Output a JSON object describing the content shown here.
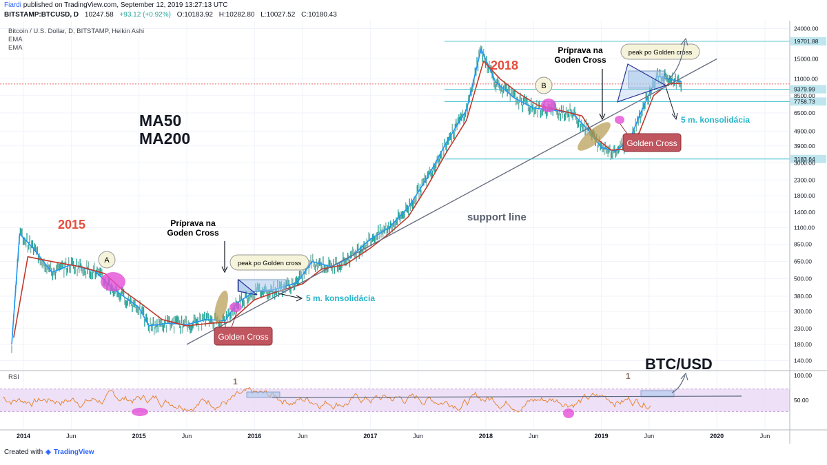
{
  "header": {
    "author": "Fiardi",
    "published": "published on TradingView.com, September 12, 2019 13:27:13 UTC",
    "symbol": "BITSTAMP:BTCUSD, D",
    "last": "10247.58",
    "change": "+93.12 (+0.92%)",
    "open": "O:10183.92",
    "high": "H:10282.80",
    "low": "L:10027.52",
    "close": "C:10180.43"
  },
  "legend": {
    "title": "Bitcoin / U.S. Dollar, D, BITSTAMP, Heikin Ashi",
    "ema1": "EMA",
    "ema2": "EMA",
    "rsi": "RSI"
  },
  "footer": {
    "created": "Created with",
    "brand": "TradingView"
  },
  "colors": {
    "ema_fast": "#2196f3",
    "ema_slow": "#c0392b",
    "candles": "#26a69a",
    "rsi_line": "#e67e22",
    "rsi_band": "#e9d8f5",
    "callout_red": "#c0565f",
    "callout_pink": "#e44fd7",
    "annotation_cyan": "#29b6c9",
    "annotation_red": "#e74c3c",
    "price_line": "#e53935"
  },
  "annotations": {
    "year2015": "2015",
    "year2018": "2018",
    "ma_text_1": "MA50",
    "ma_text_2": "MA200",
    "priprava1_line1": "Príprava na",
    "priprava1_line2": "Goden Cross",
    "priprava2_line1": "Príprava na",
    "priprava2_line2": "Goden Cross",
    "golden_cross_1": "Golden Cross",
    "golden_cross_2": "Golden Cross",
    "peak_1": "peak po Golden cross",
    "peak_2": "peak po Golden cross",
    "konsolidacia_1": "5 m. konsolidácia",
    "konsolidacia_2": "5 m. konsolidácia",
    "support": "support line",
    "btcusd": "BTC/USD",
    "marker_a": "A",
    "marker_b": "B",
    "rsi_marker_1": "1",
    "rsi_marker_2": "1"
  },
  "chart_data": {
    "type": "line",
    "title": "Bitcoin / U.S. Dollar, D, BITSTAMP, Heikin Ashi",
    "yscale": "log",
    "ylim": [
      120,
      26000
    ],
    "x_tick_labels": [
      "2014",
      "Jun",
      "2015",
      "Jun",
      "2016",
      "Jun",
      "2017",
      "Jun",
      "2018",
      "Jun",
      "2019",
      "Jun",
      "2020",
      "Jun"
    ],
    "y_tick_labels": [
      "24000.00",
      "15000.00",
      "11000.00",
      "8500.00",
      "6500.00",
      "4900.00",
      "3900.00",
      "3000.00",
      "2300.00",
      "1800.00",
      "1400.00",
      "1100.00",
      "850.00",
      "650.00",
      "500.00",
      "380.00",
      "300.00",
      "230.00",
      "180.00",
      "140.00"
    ],
    "y_ticks": [
      24000,
      15000,
      11000,
      8500,
      6500,
      4900,
      3900,
      3000,
      2300,
      1800,
      1400,
      1100,
      850,
      650,
      500,
      380,
      300,
      230,
      180,
      140
    ],
    "price_labels": [
      "19701.88",
      "9379.99",
      "7758.73",
      "3183.64"
    ],
    "price_levels": [
      19701.88,
      9379.99,
      7758.73,
      3183.64
    ],
    "current_price": 10180.43,
    "series": [
      {
        "name": "EMA",
        "x": [
          "2013-11-25",
          "2013-12-20",
          "2014-02-01",
          "2014-04-01",
          "2014-06-01",
          "2014-08-15",
          "2014-10-15",
          "2015-01-01",
          "2015-02-01",
          "2015-04-01",
          "2015-06-01",
          "2015-08-01",
          "2015-10-01",
          "2015-11-05",
          "2016-01-01",
          "2016-03-01",
          "2016-05-15",
          "2016-07-01",
          "2016-09-01",
          "2016-11-01",
          "2017-01-01",
          "2017-03-01",
          "2017-05-01",
          "2017-07-01",
          "2017-09-01",
          "2017-11-01",
          "2017-12-17",
          "2018-02-01",
          "2018-04-01",
          "2018-06-01",
          "2018-08-01",
          "2018-10-01",
          "2018-11-20",
          "2019-01-01",
          "2019-02-15",
          "2019-04-01",
          "2019-05-01",
          "2019-06-26",
          "2019-08-01",
          "2019-09-12"
        ],
        "y": [
          180,
          1000,
          800,
          550,
          620,
          560,
          420,
          320,
          240,
          250,
          245,
          265,
          260,
          340,
          410,
          420,
          470,
          650,
          600,
          700,
          920,
          1100,
          1500,
          2400,
          4200,
          6800,
          17500,
          10500,
          8200,
          7000,
          6800,
          6500,
          5000,
          3800,
          3600,
          4300,
          6200,
          11500,
          11000,
          10500
        ]
      },
      {
        "name": "EMA",
        "x": [
          "2013-12-01",
          "2014-01-15",
          "2014-04-01",
          "2014-07-01",
          "2014-09-15",
          "2014-11-15",
          "2015-01-15",
          "2015-03-15",
          "2015-06-01",
          "2015-08-15",
          "2015-10-15",
          "2016-01-01",
          "2016-03-01",
          "2016-06-01",
          "2016-08-01",
          "2016-10-15",
          "2017-01-01",
          "2017-03-01",
          "2017-05-01",
          "2017-07-01",
          "2017-09-01",
          "2017-11-01",
          "2017-12-25",
          "2018-02-15",
          "2018-04-15",
          "2018-06-15",
          "2018-09-01",
          "2018-11-01",
          "2018-12-15",
          "2019-02-01",
          "2019-03-15",
          "2019-05-01",
          "2019-06-15",
          "2019-08-01",
          "2019-09-12"
        ],
        "y": [
          200,
          700,
          650,
          600,
          540,
          410,
          330,
          265,
          240,
          250,
          255,
          360,
          400,
          460,
          580,
          620,
          800,
          1000,
          1300,
          2100,
          3600,
          5800,
          14500,
          11000,
          8800,
          7300,
          6700,
          6200,
          4400,
          3650,
          3700,
          4800,
          8500,
          10200,
          10300
        ]
      }
    ],
    "support_line": {
      "name": "support line",
      "x": [
        "2015-06-01",
        "2020-01-01"
      ],
      "y": [
        180,
        15000
      ]
    }
  }
}
